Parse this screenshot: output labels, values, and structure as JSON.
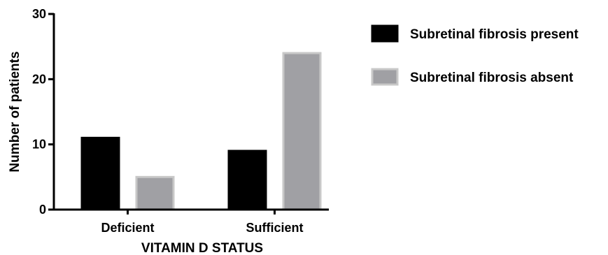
{
  "chart_data": {
    "type": "bar",
    "categories": [
      "Deficient",
      "Sufficient"
    ],
    "series": [
      {
        "name": "Subretinal fibrosis present",
        "values": [
          11,
          9
        ],
        "color": "#000000",
        "stroke": "#000000"
      },
      {
        "name": "Subretinal fibrosis absent",
        "values": [
          5,
          24
        ],
        "color": "#a0a0a4",
        "stroke": "#c8c8c8"
      }
    ],
    "title": "",
    "xlabel": "VITAMIN D STATUS",
    "ylabel": "Number of patients",
    "ylim": [
      0,
      30
    ],
    "yticks": [
      0,
      10,
      20,
      30
    ],
    "grid": false,
    "legend_position": "right"
  }
}
